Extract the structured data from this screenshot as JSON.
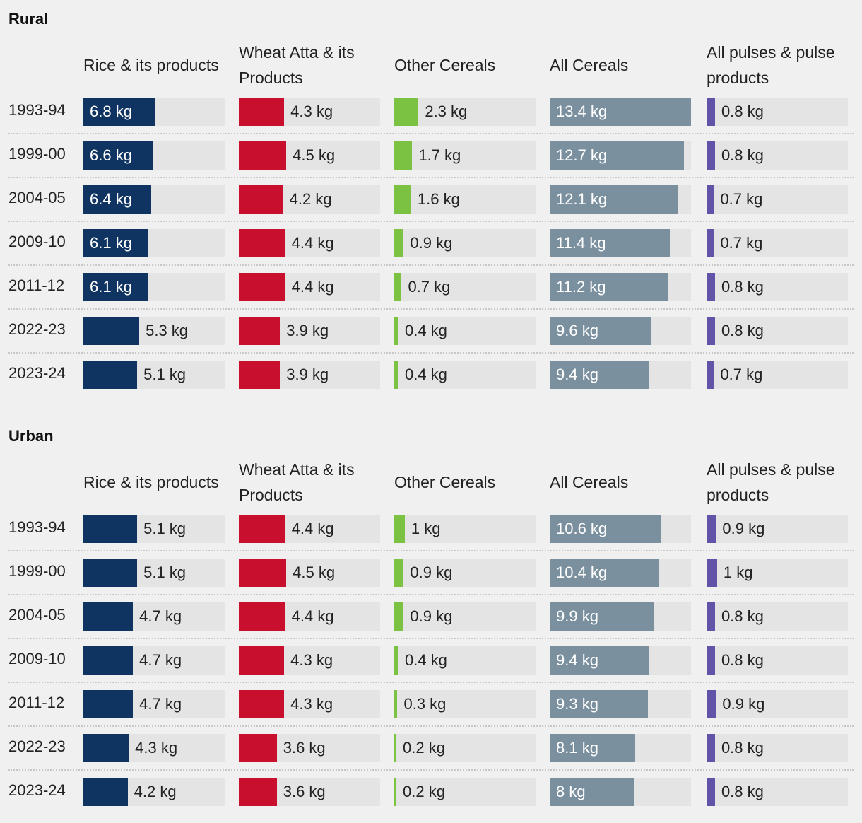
{
  "colors": {
    "rice": "#0f3461",
    "wheat": "#c8102e",
    "other": "#7cc242",
    "all": "#7b909f",
    "pulses": "#6252a8"
  },
  "chart_data": [
    {
      "type": "bar",
      "title": "Rural",
      "unit": "kg",
      "xlim": [
        0,
        13.4
      ],
      "columns": [
        "Rice & its products",
        "Wheat Atta & its Products",
        "Other Cereals",
        "All Cereals",
        "All pulses & pulse products"
      ],
      "categories": [
        "1993-94",
        "1999-00",
        "2004-05",
        "2009-10",
        "2011-12",
        "2022-23",
        "2023-24"
      ],
      "series": [
        {
          "name": "Rice & its products",
          "key": "rice",
          "values": [
            6.8,
            6.6,
            6.4,
            6.1,
            6.1,
            5.3,
            5.1
          ]
        },
        {
          "name": "Wheat Atta & its Products",
          "key": "wheat",
          "values": [
            4.3,
            4.5,
            4.2,
            4.4,
            4.4,
            3.9,
            3.9
          ]
        },
        {
          "name": "Other Cereals",
          "key": "other",
          "values": [
            2.3,
            1.7,
            1.6,
            0.9,
            0.7,
            0.4,
            0.4
          ]
        },
        {
          "name": "All Cereals",
          "key": "all",
          "values": [
            13.4,
            12.7,
            12.1,
            11.4,
            11.2,
            9.6,
            9.4
          ]
        },
        {
          "name": "All pulses & pulse products",
          "key": "pulses",
          "values": [
            0.8,
            0.8,
            0.7,
            0.7,
            0.8,
            0.8,
            0.7
          ]
        }
      ]
    },
    {
      "type": "bar",
      "title": "Urban",
      "unit": "kg",
      "xlim": [
        0,
        13.4
      ],
      "columns": [
        "Rice & its products",
        "Wheat Atta & its Products",
        "Other Cereals",
        "All Cereals",
        "All pulses & pulse products"
      ],
      "categories": [
        "1993-94",
        "1999-00",
        "2004-05",
        "2009-10",
        "2011-12",
        "2022-23",
        "2023-24"
      ],
      "series": [
        {
          "name": "Rice & its products",
          "key": "rice",
          "values": [
            5.1,
            5.1,
            4.7,
            4.7,
            4.7,
            4.3,
            4.2
          ]
        },
        {
          "name": "Wheat Atta & its Products",
          "key": "wheat",
          "values": [
            4.4,
            4.5,
            4.4,
            4.3,
            4.3,
            3.6,
            3.6
          ]
        },
        {
          "name": "Other Cereals",
          "key": "other",
          "values": [
            1,
            0.9,
            0.9,
            0.4,
            0.3,
            0.2,
            0.2
          ]
        },
        {
          "name": "All Cereals",
          "key": "all",
          "values": [
            10.6,
            10.4,
            9.9,
            9.4,
            9.3,
            8.1,
            8
          ]
        },
        {
          "name": "All pulses & pulse products",
          "key": "pulses",
          "values": [
            0.9,
            1,
            0.8,
            0.8,
            0.9,
            0.8,
            0.8
          ]
        }
      ]
    }
  ]
}
